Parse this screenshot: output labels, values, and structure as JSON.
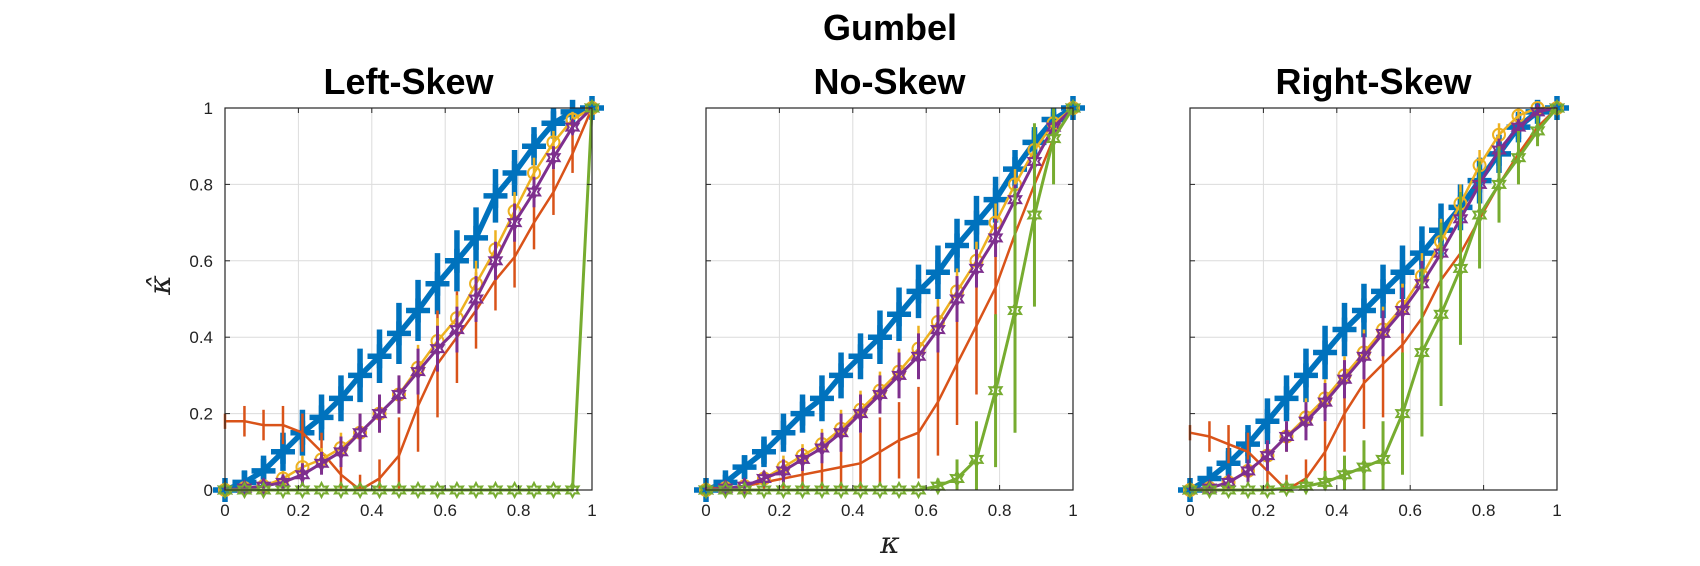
{
  "figure": {
    "suptitle": "Gumbel",
    "xlabel": "κ",
    "ylabel": "κ̂"
  },
  "series_styles": [
    {
      "key": "blue",
      "color": "#0072BD",
      "width": 5.5,
      "marker": "plus",
      "marker_size": 12
    },
    {
      "key": "red",
      "color": "#D95319",
      "width": 2.5,
      "marker": "none",
      "marker_size": 0
    },
    {
      "key": "yellow",
      "color": "#EDB120",
      "width": 2.5,
      "marker": "circle",
      "marker_size": 6
    },
    {
      "key": "purple",
      "color": "#7E2F8E",
      "width": 3,
      "marker": "hexagram",
      "marker_size": 7
    },
    {
      "key": "green",
      "color": "#77AC30",
      "width": 3,
      "marker": "hexagram",
      "marker_size": 7
    }
  ],
  "chart_data": [
    {
      "type": "line",
      "title": "Left-Skew",
      "xlim": [
        0,
        1
      ],
      "ylim": [
        0,
        1
      ],
      "xticks": [
        "0",
        "0.2",
        "0.4",
        "0.6",
        "0.8",
        "1"
      ],
      "yticks": [
        "0",
        "0.2",
        "0.4",
        "0.6",
        "0.8",
        "1"
      ],
      "grid": true,
      "series": [
        {
          "style": 0,
          "x": [
            0,
            0.053,
            0.105,
            0.158,
            0.211,
            0.263,
            0.316,
            0.368,
            0.421,
            0.474,
            0.526,
            0.579,
            0.632,
            0.684,
            0.737,
            0.789,
            0.842,
            0.895,
            0.947,
            1
          ],
          "y": [
            0,
            0.02,
            0.05,
            0.1,
            0.15,
            0.19,
            0.24,
            0.3,
            0.35,
            0.41,
            0.47,
            0.54,
            0.6,
            0.66,
            0.77,
            0.83,
            0.9,
            0.96,
            0.99,
            1
          ],
          "err": [
            0.02,
            0.03,
            0.04,
            0.05,
            0.06,
            0.06,
            0.06,
            0.07,
            0.07,
            0.08,
            0.08,
            0.08,
            0.08,
            0.08,
            0.07,
            0.06,
            0.05,
            0.04,
            0.02,
            0
          ]
        },
        {
          "style": 1,
          "x": [
            0,
            0.053,
            0.105,
            0.158,
            0.211,
            0.263,
            0.316,
            0.368,
            0.421,
            0.474,
            0.526,
            0.579,
            0.632,
            0.684,
            0.737,
            0.789,
            0.842,
            0.895,
            0.947,
            1
          ],
          "y": [
            0.18,
            0.18,
            0.17,
            0.17,
            0.15,
            0.1,
            0.04,
            0.0,
            0.03,
            0.09,
            0.22,
            0.33,
            0.4,
            0.47,
            0.55,
            0.61,
            0.7,
            0.78,
            0.88,
            1
          ],
          "err": [
            0.02,
            0.04,
            0.04,
            0.05,
            0.05,
            0.05,
            0.05,
            0.04,
            0.05,
            0.1,
            0.12,
            0.14,
            0.12,
            0.1,
            0.08,
            0.08,
            0.07,
            0.06,
            0.05,
            0
          ]
        },
        {
          "style": 2,
          "x": [
            0,
            0.053,
            0.105,
            0.158,
            0.211,
            0.263,
            0.316,
            0.368,
            0.421,
            0.474,
            0.526,
            0.579,
            0.632,
            0.684,
            0.737,
            0.789,
            0.842,
            0.895,
            0.947,
            1
          ],
          "y": [
            0,
            0.005,
            0.01,
            0.03,
            0.06,
            0.08,
            0.11,
            0.15,
            0.2,
            0.25,
            0.32,
            0.39,
            0.45,
            0.54,
            0.63,
            0.73,
            0.83,
            0.91,
            0.97,
            1
          ],
          "err": [
            0.01,
            0.01,
            0.02,
            0.02,
            0.03,
            0.03,
            0.04,
            0.05,
            0.05,
            0.05,
            0.06,
            0.06,
            0.06,
            0.06,
            0.05,
            0.05,
            0.04,
            0.03,
            0.02,
            0
          ]
        },
        {
          "style": 3,
          "x": [
            0,
            0.053,
            0.105,
            0.158,
            0.211,
            0.263,
            0.316,
            0.368,
            0.421,
            0.474,
            0.526,
            0.579,
            0.632,
            0.684,
            0.737,
            0.789,
            0.842,
            0.895,
            0.947,
            1
          ],
          "y": [
            0,
            0.005,
            0.01,
            0.02,
            0.04,
            0.07,
            0.1,
            0.15,
            0.2,
            0.25,
            0.31,
            0.37,
            0.42,
            0.5,
            0.6,
            0.7,
            0.78,
            0.87,
            0.95,
            1
          ],
          "err": [
            0.01,
            0.01,
            0.02,
            0.02,
            0.03,
            0.03,
            0.04,
            0.05,
            0.05,
            0.05,
            0.06,
            0.06,
            0.06,
            0.06,
            0.05,
            0.05,
            0.04,
            0.03,
            0.02,
            0
          ]
        },
        {
          "style": 4,
          "x": [
            0,
            0.053,
            0.105,
            0.158,
            0.211,
            0.263,
            0.316,
            0.368,
            0.421,
            0.474,
            0.526,
            0.579,
            0.632,
            0.684,
            0.737,
            0.789,
            0.842,
            0.895,
            0.947,
            1
          ],
          "y": [
            0,
            0,
            0,
            0,
            0,
            0,
            0,
            0,
            0,
            0,
            0,
            0,
            0,
            0,
            0,
            0,
            0,
            0,
            0,
            1
          ],
          "err": [
            0,
            0,
            0,
            0,
            0,
            0,
            0,
            0,
            0,
            0,
            0,
            0,
            0,
            0,
            0,
            0,
            0,
            0,
            0,
            0
          ]
        }
      ]
    },
    {
      "type": "line",
      "title": "No-Skew",
      "xlim": [
        0,
        1
      ],
      "ylim": [
        0,
        1
      ],
      "xticks": [
        "0",
        "0.2",
        "0.4",
        "0.6",
        "0.8",
        "1"
      ],
      "yticks": [],
      "grid": true,
      "series": [
        {
          "style": 0,
          "x": [
            0,
            0.053,
            0.105,
            0.158,
            0.211,
            0.263,
            0.316,
            0.368,
            0.421,
            0.474,
            0.526,
            0.579,
            0.632,
            0.684,
            0.737,
            0.789,
            0.842,
            0.895,
            0.947,
            1
          ],
          "y": [
            0,
            0.02,
            0.06,
            0.1,
            0.15,
            0.2,
            0.24,
            0.3,
            0.35,
            0.4,
            0.46,
            0.52,
            0.57,
            0.64,
            0.7,
            0.76,
            0.84,
            0.91,
            0.97,
            1
          ],
          "err": [
            0.01,
            0.02,
            0.03,
            0.04,
            0.05,
            0.05,
            0.06,
            0.06,
            0.06,
            0.07,
            0.07,
            0.07,
            0.07,
            0.07,
            0.07,
            0.06,
            0.05,
            0.04,
            0.02,
            0
          ]
        },
        {
          "style": 1,
          "x": [
            0,
            0.053,
            0.105,
            0.158,
            0.211,
            0.263,
            0.316,
            0.368,
            0.421,
            0.474,
            0.526,
            0.579,
            0.632,
            0.684,
            0.737,
            0.789,
            0.842,
            0.895,
            0.947,
            1
          ],
          "y": [
            0.005,
            0.005,
            0.01,
            0.02,
            0.03,
            0.04,
            0.05,
            0.06,
            0.07,
            0.1,
            0.13,
            0.15,
            0.23,
            0.33,
            0.43,
            0.53,
            0.67,
            0.8,
            0.92,
            1
          ],
          "err": [
            0.01,
            0.02,
            0.02,
            0.03,
            0.03,
            0.04,
            0.05,
            0.06,
            0.08,
            0.09,
            0.1,
            0.12,
            0.14,
            0.16,
            0.18,
            0.16,
            0.12,
            0.08,
            0.04,
            0
          ]
        },
        {
          "style": 2,
          "x": [
            0,
            0.053,
            0.105,
            0.158,
            0.211,
            0.263,
            0.316,
            0.368,
            0.421,
            0.474,
            0.526,
            0.579,
            0.632,
            0.684,
            0.737,
            0.789,
            0.842,
            0.895,
            0.947,
            1
          ],
          "y": [
            0,
            0.005,
            0.01,
            0.03,
            0.06,
            0.09,
            0.12,
            0.16,
            0.21,
            0.26,
            0.31,
            0.37,
            0.44,
            0.52,
            0.6,
            0.7,
            0.8,
            0.89,
            0.96,
            1
          ],
          "err": [
            0.01,
            0.01,
            0.02,
            0.02,
            0.03,
            0.03,
            0.04,
            0.05,
            0.05,
            0.05,
            0.06,
            0.06,
            0.06,
            0.06,
            0.05,
            0.05,
            0.04,
            0.03,
            0.02,
            0
          ]
        },
        {
          "style": 3,
          "x": [
            0,
            0.053,
            0.105,
            0.158,
            0.211,
            0.263,
            0.316,
            0.368,
            0.421,
            0.474,
            0.526,
            0.579,
            0.632,
            0.684,
            0.737,
            0.789,
            0.842,
            0.895,
            0.947,
            1
          ],
          "y": [
            0,
            0.005,
            0.01,
            0.03,
            0.05,
            0.08,
            0.11,
            0.15,
            0.2,
            0.25,
            0.3,
            0.35,
            0.42,
            0.5,
            0.58,
            0.66,
            0.76,
            0.86,
            0.95,
            1
          ],
          "err": [
            0.01,
            0.01,
            0.02,
            0.02,
            0.03,
            0.03,
            0.04,
            0.05,
            0.05,
            0.05,
            0.06,
            0.06,
            0.06,
            0.06,
            0.05,
            0.05,
            0.04,
            0.03,
            0.02,
            0
          ]
        },
        {
          "style": 4,
          "x": [
            0,
            0.053,
            0.105,
            0.158,
            0.211,
            0.263,
            0.316,
            0.368,
            0.421,
            0.474,
            0.526,
            0.579,
            0.632,
            0.684,
            0.737,
            0.789,
            0.842,
            0.895,
            0.947,
            1
          ],
          "y": [
            0,
            0,
            0,
            0,
            0,
            0,
            0,
            0,
            0,
            0,
            0,
            0,
            0.01,
            0.03,
            0.08,
            0.26,
            0.47,
            0.72,
            0.92,
            1
          ],
          "err": [
            0,
            0,
            0,
            0,
            0,
            0,
            0,
            0,
            0,
            0,
            0,
            0,
            0.02,
            0.05,
            0.1,
            0.2,
            0.32,
            0.24,
            0.12,
            0
          ]
        }
      ]
    },
    {
      "type": "line",
      "title": "Right-Skew",
      "xlim": [
        0,
        1
      ],
      "ylim": [
        0,
        1
      ],
      "xticks": [
        "0",
        "0.2",
        "0.4",
        "0.6",
        "0.8",
        "1"
      ],
      "yticks": [],
      "grid": true,
      "series": [
        {
          "style": 0,
          "x": [
            0,
            0.053,
            0.105,
            0.158,
            0.211,
            0.263,
            0.316,
            0.368,
            0.421,
            0.474,
            0.526,
            0.579,
            0.632,
            0.684,
            0.737,
            0.789,
            0.842,
            0.895,
            0.947,
            1
          ],
          "y": [
            0,
            0.03,
            0.07,
            0.12,
            0.18,
            0.24,
            0.3,
            0.36,
            0.42,
            0.47,
            0.52,
            0.57,
            0.62,
            0.68,
            0.74,
            0.81,
            0.88,
            0.95,
            0.99,
            1
          ],
          "err": [
            0.02,
            0.03,
            0.04,
            0.05,
            0.06,
            0.06,
            0.07,
            0.07,
            0.07,
            0.07,
            0.07,
            0.07,
            0.07,
            0.07,
            0.06,
            0.06,
            0.05,
            0.04,
            0.02,
            0
          ]
        },
        {
          "style": 1,
          "x": [
            0,
            0.053,
            0.105,
            0.158,
            0.211,
            0.263,
            0.316,
            0.368,
            0.421,
            0.474,
            0.526,
            0.579,
            0.632,
            0.684,
            0.737,
            0.789,
            0.842,
            0.895,
            0.947,
            1
          ],
          "y": [
            0.15,
            0.14,
            0.12,
            0.1,
            0.05,
            0.0,
            0.03,
            0.1,
            0.2,
            0.28,
            0.33,
            0.38,
            0.45,
            0.55,
            0.62,
            0.71,
            0.8,
            0.88,
            0.95,
            1
          ],
          "err": [
            0.02,
            0.04,
            0.05,
            0.05,
            0.05,
            0.04,
            0.05,
            0.08,
            0.1,
            0.12,
            0.14,
            0.16,
            0.14,
            0.12,
            0.1,
            0.08,
            0.06,
            0.05,
            0.04,
            0
          ]
        },
        {
          "style": 2,
          "x": [
            0,
            0.053,
            0.105,
            0.158,
            0.211,
            0.263,
            0.316,
            0.368,
            0.421,
            0.474,
            0.526,
            0.579,
            0.632,
            0.684,
            0.737,
            0.789,
            0.842,
            0.895,
            0.947,
            1
          ],
          "y": [
            0,
            0.005,
            0.02,
            0.05,
            0.09,
            0.14,
            0.19,
            0.24,
            0.3,
            0.36,
            0.42,
            0.48,
            0.56,
            0.65,
            0.75,
            0.85,
            0.93,
            0.98,
            1,
            1
          ],
          "err": [
            0.01,
            0.01,
            0.02,
            0.03,
            0.04,
            0.04,
            0.05,
            0.05,
            0.05,
            0.06,
            0.06,
            0.06,
            0.06,
            0.06,
            0.05,
            0.04,
            0.03,
            0.02,
            0.01,
            0
          ]
        },
        {
          "style": 3,
          "x": [
            0,
            0.053,
            0.105,
            0.158,
            0.211,
            0.263,
            0.316,
            0.368,
            0.421,
            0.474,
            0.526,
            0.579,
            0.632,
            0.684,
            0.737,
            0.789,
            0.842,
            0.895,
            0.947,
            1
          ],
          "y": [
            0,
            0.005,
            0.02,
            0.05,
            0.09,
            0.14,
            0.18,
            0.23,
            0.29,
            0.35,
            0.41,
            0.47,
            0.54,
            0.62,
            0.71,
            0.8,
            0.89,
            0.95,
            0.99,
            1
          ],
          "err": [
            0.01,
            0.01,
            0.02,
            0.03,
            0.04,
            0.04,
            0.05,
            0.05,
            0.05,
            0.06,
            0.06,
            0.06,
            0.06,
            0.06,
            0.05,
            0.04,
            0.03,
            0.02,
            0.01,
            0
          ]
        },
        {
          "style": 4,
          "x": [
            0,
            0.053,
            0.105,
            0.158,
            0.211,
            0.263,
            0.316,
            0.368,
            0.421,
            0.474,
            0.526,
            0.579,
            0.632,
            0.684,
            0.737,
            0.789,
            0.842,
            0.895,
            0.947,
            1
          ],
          "y": [
            0,
            0,
            0,
            0,
            0,
            0.005,
            0.01,
            0.02,
            0.04,
            0.06,
            0.08,
            0.2,
            0.36,
            0.46,
            0.58,
            0.72,
            0.8,
            0.87,
            0.94,
            1
          ],
          "err": [
            0,
            0,
            0,
            0,
            0,
            0.01,
            0.02,
            0.03,
            0.05,
            0.07,
            0.1,
            0.16,
            0.22,
            0.24,
            0.2,
            0.14,
            0.1,
            0.07,
            0.04,
            0
          ]
        }
      ]
    }
  ]
}
